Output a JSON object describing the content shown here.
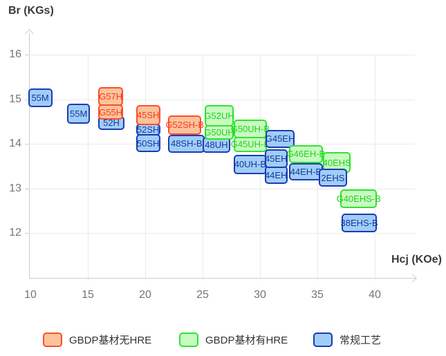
{
  "chart_data": {
    "type": "scatter",
    "subtype": "labeled-range-boxes",
    "title": "",
    "xlabel": "Hcj (KOe)",
    "ylabel": "Br (KGs)",
    "x_ticks": [
      10,
      15,
      20,
      25,
      30,
      35,
      40
    ],
    "y_ticks": [
      16,
      15,
      14,
      13,
      12
    ],
    "xlim": [
      9.8,
      43.5
    ],
    "ylim": [
      11,
      16.5
    ],
    "grid": true,
    "legend_position": "bottom",
    "series_styles": {
      "gbdp_no_hre": {
        "name": "GBDP基材无HRE",
        "fill": "#fbc39c",
        "border": "#ff4e2b",
        "text": "#f93a1d"
      },
      "gbdp_hre": {
        "name": "GBDP基材有HRE",
        "fill": "#c9fac2",
        "border": "#30e430",
        "text": "#1fd41f"
      },
      "conventional": {
        "name": "常规工艺",
        "fill": "#a0cdf8",
        "border": "#1c3bb2",
        "text": "#16389c"
      }
    },
    "boxes": [
      {
        "label": "55M",
        "series": "conventional",
        "hcj": [
          9.8,
          11.9
        ],
        "br": [
          14.82,
          15.24
        ]
      },
      {
        "label": "55M",
        "series": "conventional",
        "hcj": [
          13.2,
          15.2
        ],
        "br": [
          14.45,
          14.9
        ]
      },
      {
        "label": "52H",
        "series": "conventional",
        "hcj": [
          15.9,
          18.2
        ],
        "br": [
          14.31,
          14.62
        ]
      },
      {
        "label": "G55H",
        "series": "gbdp_no_hre",
        "hcj": [
          15.9,
          18.1
        ],
        "br": [
          14.54,
          14.88
        ]
      },
      {
        "label": "G57H",
        "series": "gbdp_no_hre",
        "hcj": [
          15.9,
          18.1
        ],
        "br": [
          14.85,
          15.27
        ]
      },
      {
        "label": "50SH",
        "series": "conventional",
        "hcj": [
          19.2,
          21.3
        ],
        "br": [
          13.81,
          14.22
        ]
      },
      {
        "label": "52SH",
        "series": "conventional",
        "hcj": [
          19.2,
          21.3
        ],
        "br": [
          14.19,
          14.45
        ]
      },
      {
        "label": "45SH",
        "series": "gbdp_no_hre",
        "hcj": [
          19.2,
          21.3
        ],
        "br": [
          14.42,
          14.87
        ]
      },
      {
        "label": "48SH-B",
        "series": "conventional",
        "hcj": [
          22.0,
          25.2
        ],
        "br": [
          13.8,
          14.2
        ]
      },
      {
        "label": "G52SH-B",
        "series": "gbdp_no_hre",
        "hcj": [
          22.0,
          24.9
        ],
        "br": [
          14.2,
          14.64
        ]
      },
      {
        "label": "48UH",
        "series": "conventional",
        "hcj": [
          25.0,
          27.4
        ],
        "br": [
          13.8,
          14.16
        ]
      },
      {
        "label": "G50UH",
        "series": "gbdp_hre",
        "hcj": [
          25.2,
          27.7
        ],
        "br": [
          14.09,
          14.42
        ]
      },
      {
        "label": "G52UH",
        "series": "gbdp_hre",
        "hcj": [
          25.2,
          27.7
        ],
        "br": [
          14.39,
          14.87
        ]
      },
      {
        "label": "G45UH-B",
        "series": "gbdp_hre",
        "hcj": [
          27.7,
          30.6
        ],
        "br": [
          13.81,
          14.16
        ]
      },
      {
        "label": "G50UH-B",
        "series": "gbdp_hre",
        "hcj": [
          27.7,
          30.6
        ],
        "br": [
          14.12,
          14.54
        ]
      },
      {
        "label": "40UH-B",
        "series": "conventional",
        "hcj": [
          27.7,
          30.6
        ],
        "br": [
          13.32,
          13.75
        ]
      },
      {
        "label": "G45EH",
        "series": "conventional",
        "hcj": [
          30.5,
          33.0
        ],
        "br": [
          13.91,
          14.31
        ]
      },
      {
        "label": "44EH",
        "series": "conventional",
        "hcj": [
          30.4,
          32.4
        ],
        "br": [
          13.1,
          13.5
        ]
      },
      {
        "label": "45EH",
        "series": "conventional",
        "hcj": [
          30.4,
          32.4
        ],
        "br": [
          13.46,
          13.88
        ]
      },
      {
        "label": "44EH-B",
        "series": "conventional",
        "hcj": [
          32.5,
          35.5
        ],
        "br": [
          13.18,
          13.57
        ]
      },
      {
        "label": "G46EH-B",
        "series": "gbdp_hre",
        "hcj": [
          32.5,
          35.5
        ],
        "br": [
          13.57,
          13.97
        ]
      },
      {
        "label": "40EHS",
        "series": "gbdp_hre",
        "hcj": [
          35.5,
          37.9
        ],
        "br": [
          13.35,
          13.81
        ]
      },
      {
        "label": "2EHS",
        "series": "conventional",
        "hcj": [
          35.1,
          37.6
        ],
        "br": [
          13.04,
          13.44
        ]
      },
      {
        "label": "G40EHS-B",
        "series": "gbdp_hre",
        "hcj": [
          37.0,
          40.2
        ],
        "br": [
          12.56,
          12.98
        ]
      },
      {
        "label": "38EHS-B",
        "series": "conventional",
        "hcj": [
          37.1,
          40.2
        ],
        "br": [
          12.02,
          12.43
        ]
      }
    ]
  },
  "legend": {
    "items": [
      {
        "key": "gbdp_no_hre",
        "label": "GBDP基材无HRE"
      },
      {
        "key": "gbdp_hre",
        "label": "GBDP基材有HRE"
      },
      {
        "key": "conventional",
        "label": "常规工艺"
      }
    ]
  }
}
